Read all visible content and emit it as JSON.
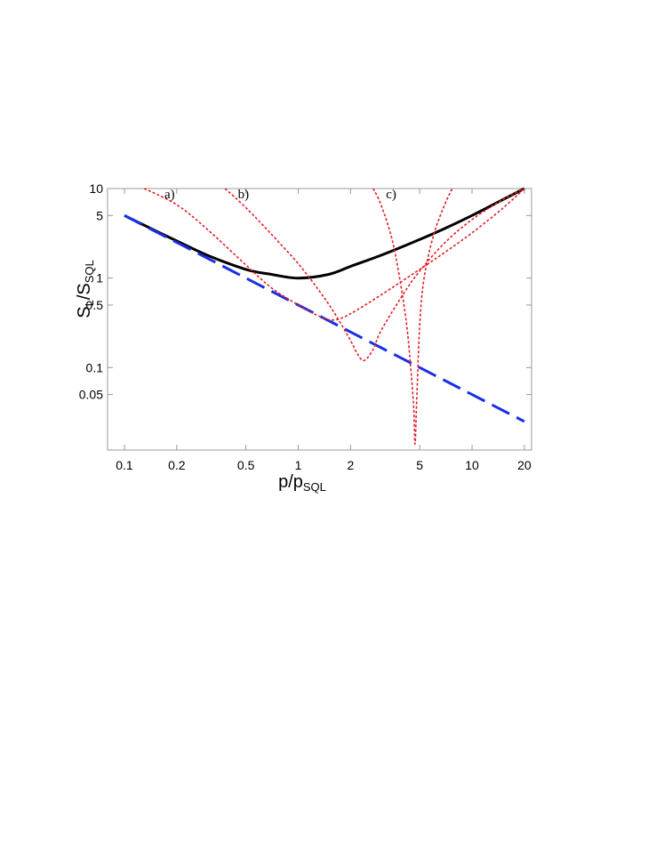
{
  "chart_data": {
    "type": "line",
    "xscale": "log",
    "yscale": "log",
    "xlim": [
      0.08,
      22
    ],
    "ylim": [
      0.012,
      10
    ],
    "xticks": [
      0.1,
      0.2,
      0.5,
      1,
      2,
      5,
      10,
      20
    ],
    "xtick_labels": [
      "0.1",
      "0.2",
      "0.5",
      "1",
      "2",
      "5",
      "10",
      "20"
    ],
    "yticks": [
      10,
      5,
      1,
      0.5,
      0.1,
      0.05
    ],
    "ytick_labels": [
      "10",
      "5",
      "1",
      "0.5",
      "0.1",
      "0.05"
    ],
    "xlabel": {
      "main": "p/p",
      "sub": "SQL"
    },
    "ylabel": {
      "main": "S",
      "sub1": "L",
      "mid": "/S",
      "sub2": "SQL"
    },
    "grid": false,
    "series": [
      {
        "style": "solid",
        "color": "#000000",
        "x": [
          0.1,
          0.15,
          0.2,
          0.3,
          0.5,
          0.7,
          1,
          1.5,
          2,
          3,
          5,
          7,
          10,
          15,
          20
        ],
        "y": [
          5.0,
          3.4,
          2.6,
          1.8,
          1.25,
          1.1,
          1.0,
          1.1,
          1.35,
          1.8,
          2.7,
          3.6,
          5.0,
          7.5,
          10.0
        ]
      },
      {
        "style": "dashed",
        "color": "#1a2ee6",
        "x": [
          0.1,
          0.2,
          0.5,
          1,
          2,
          5,
          10,
          20
        ],
        "y": [
          5.0,
          2.5,
          1.0,
          0.5,
          0.25,
          0.1,
          0.05,
          0.025
        ]
      },
      {
        "style": "dotted",
        "color": "#e0202a",
        "x": [
          0.13,
          0.2,
          0.3,
          0.5,
          0.7,
          1,
          1.3,
          1.6,
          2,
          3,
          5,
          7,
          10,
          15,
          20
        ],
        "y": [
          10.0,
          6.6,
          3.5,
          1.4,
          0.78,
          0.5,
          0.38,
          0.34,
          0.4,
          0.65,
          1.25,
          1.95,
          3.2,
          6.0,
          10.0
        ]
      },
      {
        "style": "dotted",
        "color": "#e0202a",
        "x": [
          0.38,
          0.5,
          0.7,
          1,
          1.3,
          1.6,
          2,
          2.2,
          2.4,
          2.7,
          3,
          4,
          5,
          7,
          10,
          15,
          20
        ],
        "y": [
          10.0,
          6.1,
          3.1,
          1.45,
          0.75,
          0.42,
          0.2,
          0.14,
          0.12,
          0.16,
          0.26,
          0.65,
          1.2,
          2.5,
          4.5,
          7.5,
          10.0
        ]
      },
      {
        "style": "dotted",
        "color": "#e0202a",
        "x": [
          2.7,
          3,
          3.5,
          4,
          4.3,
          4.6,
          4.7,
          4.8,
          5,
          5.3,
          6,
          7,
          7.7
        ],
        "y": [
          10.0,
          6.5,
          2.5,
          0.6,
          0.2,
          0.04,
          0.014,
          0.04,
          0.3,
          1.0,
          3.0,
          6.8,
          10.0
        ]
      }
    ],
    "annotations": [
      {
        "text": "a)",
        "x": 0.17,
        "y": 7.8
      },
      {
        "text": "b)",
        "x": 0.45,
        "y": 7.8
      },
      {
        "text": "c)",
        "x": 3.2,
        "y": 7.8
      }
    ]
  }
}
